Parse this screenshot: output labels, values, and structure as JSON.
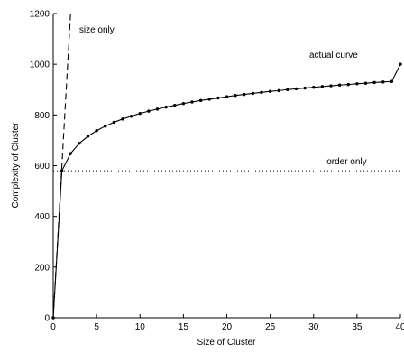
{
  "chart_data": {
    "type": "line",
    "title": "",
    "xlabel": "Size of Cluster",
    "ylabel": "Complexity of Cluster",
    "xlim": [
      0,
      40
    ],
    "ylim": [
      0,
      1200
    ],
    "xticks": [
      0,
      5,
      10,
      15,
      20,
      25,
      30,
      35,
      40
    ],
    "yticks": [
      0,
      200,
      400,
      600,
      800,
      1000,
      1200
    ],
    "grid": false,
    "legend": "none",
    "series": [
      {
        "label": "actual curve",
        "style": "solid-with-dots",
        "color": "#000000",
        "x": [
          0,
          1,
          2,
          3,
          4,
          5,
          6,
          7,
          8,
          9,
          10,
          11,
          12,
          13,
          14,
          15,
          16,
          17,
          18,
          19,
          20,
          21,
          22,
          23,
          24,
          25,
          26,
          27,
          28,
          29,
          30,
          31,
          32,
          33,
          34,
          35,
          36,
          37,
          38,
          39,
          40
        ],
        "y": [
          0,
          580,
          648,
          688,
          716,
          738,
          756,
          771,
          784,
          795,
          806,
          815,
          823,
          831,
          838,
          845,
          851,
          857,
          862,
          867,
          872,
          877,
          881,
          885,
          889,
          893,
          896,
          900,
          903,
          906,
          909,
          912,
          915,
          918,
          920,
          923,
          925,
          928,
          930,
          932,
          1000
        ]
      },
      {
        "label": "size only",
        "style": "dashed",
        "color": "#000000",
        "x": [
          0,
          2
        ],
        "y": [
          0,
          1200
        ]
      },
      {
        "label": "order only",
        "style": "dotted",
        "color": "#000000",
        "x": [
          0,
          40
        ],
        "y": [
          580,
          580
        ]
      }
    ],
    "annotations": [
      {
        "text": "size only",
        "x": 3.0,
        "y": 1125
      },
      {
        "text": "actual curve",
        "x": 29.5,
        "y": 1025
      },
      {
        "text": "order only",
        "x": 31.5,
        "y": 605
      }
    ]
  }
}
